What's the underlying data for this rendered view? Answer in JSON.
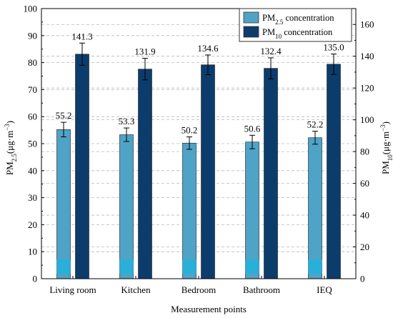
{
  "chart_data": {
    "type": "bar",
    "categories": [
      "Living room",
      "Kitchen",
      "Bedroom",
      "Bathroom",
      "IEQ"
    ],
    "xlabel": "Measurement points",
    "y_left": {
      "label_main": "PM",
      "label_sub": "2.5",
      "label_unit": "(μg·m",
      "label_sup": "−3",
      "label_close": ")",
      "lim": [
        0,
        100
      ],
      "ticks": [
        0,
        10,
        20,
        30,
        40,
        50,
        60,
        70,
        80,
        90,
        100
      ]
    },
    "y_right": {
      "label_main": "PM",
      "label_sub": "10",
      "label_unit": "(μg·m",
      "label_sup": "−3",
      "label_close": ")",
      "lim": [
        0,
        170
      ],
      "ticks": [
        0,
        20,
        40,
        60,
        80,
        100,
        120,
        140,
        160
      ]
    },
    "series": [
      {
        "name_main": "PM",
        "name_sub": "2.5",
        "name_rest": " concentration",
        "axis": "left",
        "color": "#4fa3c7",
        "values": [
          55.2,
          53.3,
          50.2,
          50.6,
          52.2
        ],
        "errors": [
          2.7,
          2.5,
          2.3,
          2.5,
          2.4
        ],
        "labels": [
          "55.2",
          "53.3",
          "50.2",
          "50.6",
          "52.2"
        ]
      },
      {
        "name_main": "PM",
        "name_sub": "10",
        "name_rest": " concentration",
        "axis": "right",
        "color": "#0c3c6c",
        "values": [
          141.3,
          131.9,
          134.6,
          132.4,
          135.0
        ],
        "errors": [
          7.0,
          6.8,
          6.2,
          6.6,
          6.4
        ],
        "labels": [
          "141.3",
          "131.9",
          "134.6",
          "132.4",
          "135.0"
        ]
      }
    ],
    "grid": "horizontal-dashed",
    "legend_position": "top-right",
    "base_accent_color": "#29b0d8"
  }
}
